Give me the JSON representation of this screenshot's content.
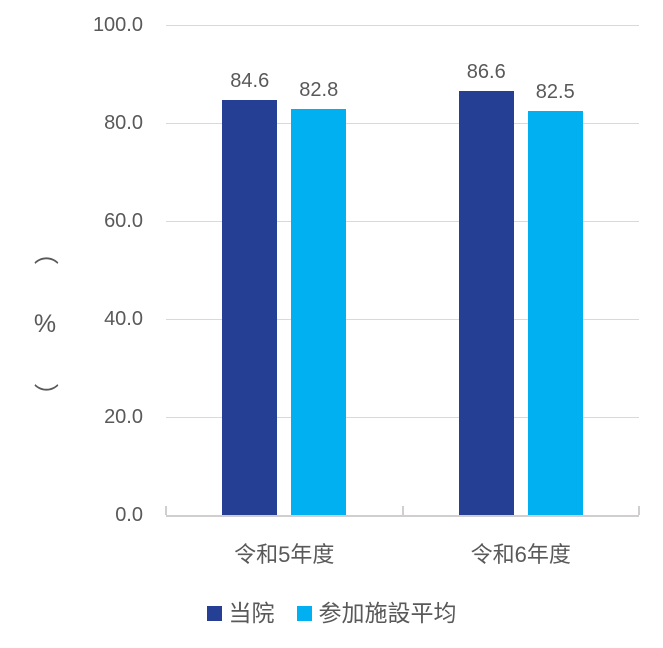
{
  "chart_data": {
    "type": "bar",
    "categories": [
      "令和5年度",
      "令和6年度"
    ],
    "series": [
      {
        "name": "当院",
        "color": "#243F94",
        "values": [
          84.6,
          86.6
        ]
      },
      {
        "name": "参加施設平均",
        "color": "#00B0F0",
        "values": [
          82.8,
          82.5
        ]
      }
    ],
    "data_labels": [
      [
        "84.6",
        "86.6"
      ],
      [
        "82.8",
        "82.5"
      ]
    ],
    "title": "",
    "xlabel": "",
    "ylabel": "（%）",
    "ylim": [
      0,
      100
    ],
    "ytick_interval": 20,
    "yticks": [
      "0.0",
      "20.0",
      "40.0",
      "60.0",
      "80.0",
      "100.0"
    ],
    "grid": "horizontal",
    "legend_position": "bottom",
    "colors": {
      "grid": "#D9D9D9",
      "axis": "#D0CECE",
      "text": "#595959",
      "background": "#FFFFFF"
    }
  }
}
